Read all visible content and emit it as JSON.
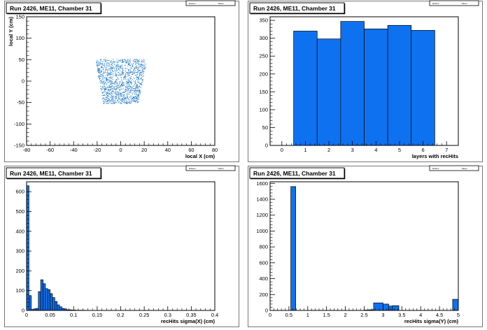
{
  "colors": {
    "fill": "#0e72f0",
    "stroke": "#000000",
    "scatter": "#1e78c8",
    "frame": "#000000"
  },
  "chart_data": [
    {
      "type": "scatter",
      "title": "Run 2426, ME11, Chamber 31",
      "xlabel": "local X (cm)",
      "ylabel": "local Y (cm)",
      "xlim": [
        -80,
        80
      ],
      "ylim": [
        -150,
        150
      ],
      "xticks": [
        -80,
        -60,
        -40,
        -20,
        0,
        20,
        40,
        60,
        80
      ],
      "yticks": [
        -150,
        -100,
        -50,
        0,
        50,
        100,
        150
      ],
      "region": {
        "y_range": [
          -52,
          52
        ],
        "x_half_width_at_top": 22,
        "x_half_width_at_bottom": 15
      },
      "stat_labels": [
        "Entries",
        "Mean"
      ]
    },
    {
      "type": "bar",
      "title": "Run 2426, ME11, Chamber 31",
      "xlabel": "layers with recHits",
      "ylabel": "",
      "xlim": [
        -0.5,
        7.5
      ],
      "ylim": [
        0,
        360
      ],
      "xticks": [
        0,
        1,
        2,
        3,
        4,
        5,
        6,
        7
      ],
      "yticks": [
        0,
        50,
        100,
        150,
        200,
        250,
        300,
        350
      ],
      "bin_edges": [
        0.5,
        1.5,
        2.5,
        3.5,
        4.5,
        5.5,
        6.5
      ],
      "values": [
        320,
        298,
        347,
        326,
        336,
        322
      ],
      "stat_labels": [
        "Entries",
        "Mean"
      ]
    },
    {
      "type": "bar",
      "title": "Run 2426, ME11, Chamber 31",
      "xlabel": "recHits sigma(X) (cm)",
      "ylabel": "",
      "xlim": [
        0,
        0.4
      ],
      "ylim": [
        0,
        650
      ],
      "xticks": [
        0,
        0.05,
        0.1,
        0.15,
        0.2,
        0.25,
        0.3,
        0.35,
        0.4
      ],
      "yticks": [
        0,
        100,
        200,
        300,
        400,
        500,
        600
      ],
      "bin_start": 0,
      "bin_width": 0.005,
      "values": [
        630,
        75,
        5,
        8,
        10,
        95,
        155,
        135,
        110,
        105,
        85,
        65,
        45,
        28,
        18,
        10,
        8,
        3,
        3,
        2,
        2,
        1,
        1,
        1,
        1
      ],
      "stat_labels": [
        "Entries",
        "Mean"
      ]
    },
    {
      "type": "bar",
      "title": "Run 2426, ME11, Chamber 31",
      "xlabel": "recHits sigma(Y) (cm)",
      "ylabel": "",
      "xlim": [
        0,
        5
      ],
      "ylim": [
        0,
        1620
      ],
      "xticks": [
        0,
        0.5,
        1,
        1.5,
        2,
        2.5,
        3,
        3.5,
        4,
        4.5,
        5
      ],
      "yticks": [
        0,
        200,
        400,
        600,
        800,
        1000,
        1200,
        1400,
        1600
      ],
      "bars": [
        {
          "x0": 0.55,
          "x1": 0.68,
          "value": 1560
        },
        {
          "x0": 2.5,
          "x1": 2.63,
          "value": 5
        },
        {
          "x0": 2.63,
          "x1": 2.75,
          "value": 8
        },
        {
          "x0": 2.75,
          "x1": 3.0,
          "value": 95
        },
        {
          "x0": 3.0,
          "x1": 3.15,
          "value": 80
        },
        {
          "x0": 3.15,
          "x1": 3.25,
          "value": 55
        },
        {
          "x0": 3.25,
          "x1": 3.42,
          "value": 60
        },
        {
          "x0": 4.85,
          "x1": 5.0,
          "value": 140
        }
      ],
      "stat_labels": [
        "Entries",
        "Mean"
      ]
    }
  ]
}
